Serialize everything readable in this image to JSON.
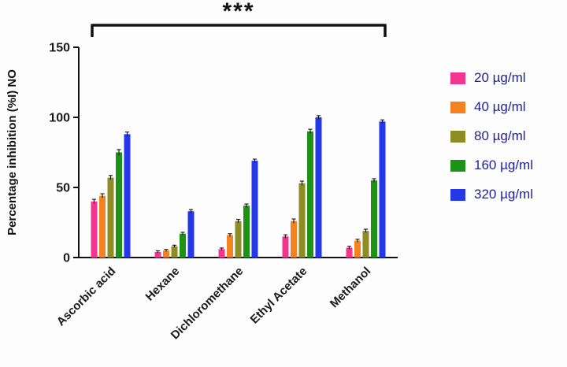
{
  "chart_data": {
    "type": "bar",
    "title": "",
    "xlabel": "",
    "ylabel": "Percentage inhibition (%I) NO",
    "ylim": [
      0,
      150
    ],
    "yticks": [
      0,
      50,
      100,
      150
    ],
    "grid": false,
    "legend_position": "right",
    "categories": [
      "Ascorbic acid",
      "Hexane",
      "Dichloromethane",
      "Ethyl Acetate",
      "Methanol"
    ],
    "series": [
      {
        "name": "20 µg/ml",
        "color": "#F23690",
        "values": [
          40,
          4,
          6,
          15,
          7
        ],
        "errors": [
          1.5,
          0.8,
          0.8,
          1.2,
          1.0
        ]
      },
      {
        "name": "40 µg/ml",
        "color": "#F58220",
        "values": [
          44,
          5,
          16,
          26,
          12
        ],
        "errors": [
          1.5,
          0.8,
          1.0,
          1.5,
          1.0
        ]
      },
      {
        "name": "80 µg/ml",
        "color": "#8E8D24",
        "values": [
          57,
          8,
          26,
          53,
          19
        ],
        "errors": [
          1.5,
          0.8,
          1.2,
          1.5,
          1.2
        ]
      },
      {
        "name": "160 µg/ml",
        "color": "#1E9117",
        "values": [
          75,
          17,
          37,
          90,
          55
        ],
        "errors": [
          2.0,
          1.0,
          1.2,
          1.5,
          1.2
        ]
      },
      {
        "name": "320 µg/ml",
        "color": "#2438E8",
        "values": [
          88,
          33,
          69,
          100,
          97
        ],
        "errors": [
          1.5,
          1.2,
          1.2,
          1.2,
          1.2
        ]
      }
    ],
    "significance": {
      "label": "***",
      "spans": "all-categories"
    }
  },
  "colors": {
    "axis": "#111111",
    "tick_text": "#1a1a1a",
    "category_text": "#1a1a1a",
    "ylabel_text": "#111111",
    "legend_text": "#20209A",
    "significance": "#111111"
  }
}
